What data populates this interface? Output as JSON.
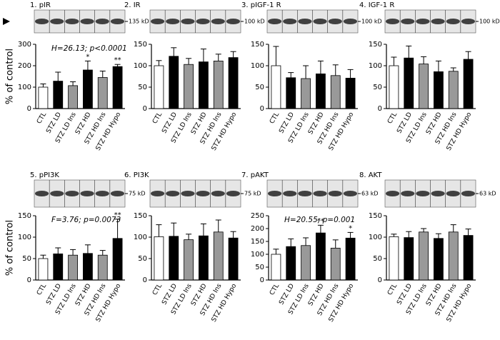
{
  "chart_data": [
    {
      "type": "bar",
      "title": "1. pIR",
      "blot_label": "135 kD",
      "ylabel": "% of control",
      "annotation": "H=26.13; p<0.0001",
      "categories": [
        "CTL",
        "STZ LD",
        "STZ LD Ins",
        "STZ HD",
        "STZ HD Ins",
        "STZ HD Hypo"
      ],
      "values": [
        100,
        128,
        107,
        180,
        145,
        196
      ],
      "errors": [
        15,
        42,
        18,
        42,
        30,
        10
      ],
      "stars": [
        null,
        null,
        null,
        "*",
        null,
        "**"
      ],
      "colors": [
        "#ffffff",
        "#000000",
        "#999999",
        "#000000",
        "#999999",
        "#000000"
      ],
      "ylim": [
        0,
        300
      ],
      "yticks": [
        0,
        100,
        200,
        300
      ]
    },
    {
      "type": "bar",
      "title": "2. IR",
      "blot_label": "100 kD",
      "categories": [
        "CTL",
        "STZ LD",
        "STZ LD Ins",
        "STZ HD",
        "STZ HD Ins",
        "STZ HD Hypo"
      ],
      "values": [
        100,
        122,
        103,
        109,
        111,
        119
      ],
      "errors": [
        12,
        20,
        14,
        30,
        16,
        14
      ],
      "colors": [
        "#ffffff",
        "#000000",
        "#999999",
        "#000000",
        "#999999",
        "#000000"
      ],
      "ylim": [
        0,
        150
      ],
      "yticks": [
        0,
        50,
        100,
        150
      ]
    },
    {
      "type": "bar",
      "title": "3. pIGF-1 R",
      "blot_label": "100 kD",
      "categories": [
        "CTL",
        "STZ LD",
        "STZ LD Ins",
        "STZ HD",
        "STZ HD Ins",
        "STZ HD Hypo"
      ],
      "values": [
        100,
        72,
        70,
        81,
        77,
        71
      ],
      "errors": [
        45,
        12,
        30,
        30,
        25,
        20
      ],
      "colors": [
        "#ffffff",
        "#000000",
        "#999999",
        "#000000",
        "#999999",
        "#000000"
      ],
      "ylim": [
        0,
        150
      ],
      "yticks": [
        0,
        50,
        100,
        150
      ]
    },
    {
      "type": "bar",
      "title": "4. IGF-1 R",
      "blot_label": "100 kD",
      "categories": [
        "CTL",
        "STZ LD",
        "STZ LD Ins",
        "STZ HD",
        "STZ HD Ins",
        "STZ HD Hypo"
      ],
      "values": [
        100,
        118,
        104,
        86,
        87,
        115
      ],
      "errors": [
        20,
        28,
        17,
        25,
        8,
        18
      ],
      "colors": [
        "#ffffff",
        "#000000",
        "#999999",
        "#000000",
        "#999999",
        "#000000"
      ],
      "ylim": [
        0,
        150
      ],
      "yticks": [
        0,
        50,
        100,
        150
      ]
    },
    {
      "type": "bar",
      "title": "5. pPI3K",
      "blot_label": "75 kD",
      "ylabel": "% of control",
      "annotation": "F=3.76; p=0.0073",
      "categories": [
        "CTL",
        "STZ LD",
        "STZ LD Ins",
        "STZ HD",
        "STZ HD Ins",
        "STZ HD Hypo"
      ],
      "values": [
        50,
        61,
        58,
        62,
        58,
        97
      ],
      "errors": [
        8,
        14,
        13,
        20,
        11,
        45
      ],
      "stars": [
        null,
        null,
        null,
        null,
        null,
        "**"
      ],
      "colors": [
        "#ffffff",
        "#000000",
        "#999999",
        "#000000",
        "#999999",
        "#000000"
      ],
      "ylim": [
        0,
        150
      ],
      "yticks": [
        0,
        50,
        100,
        150
      ]
    },
    {
      "type": "bar",
      "title": "6. PI3K",
      "blot_label": "75 kD",
      "categories": [
        "CTL",
        "STZ LD",
        "STZ LD Ins",
        "STZ HD",
        "STZ HD Ins",
        "STZ HD Hypo"
      ],
      "values": [
        101,
        102,
        94,
        103,
        112,
        98
      ],
      "errors": [
        28,
        31,
        13,
        28,
        28,
        15
      ],
      "colors": [
        "#ffffff",
        "#000000",
        "#999999",
        "#000000",
        "#999999",
        "#000000"
      ],
      "ylim": [
        0,
        150
      ],
      "yticks": [
        0,
        50,
        100,
        150
      ]
    },
    {
      "type": "bar",
      "title": "7. pAKT",
      "blot_label": "63 kD",
      "annotation": "H=20.55; p=0.001",
      "categories": [
        "CTL",
        "STZ LD",
        "STZ LD Ins",
        "STZ HD",
        "STZ HD Ins",
        "STZ HD Hypo"
      ],
      "values": [
        100,
        130,
        134,
        183,
        124,
        163
      ],
      "errors": [
        20,
        30,
        30,
        30,
        32,
        22
      ],
      "stars": [
        null,
        null,
        null,
        "**",
        null,
        "*"
      ],
      "colors": [
        "#ffffff",
        "#000000",
        "#999999",
        "#000000",
        "#999999",
        "#000000"
      ],
      "ylim": [
        0,
        250
      ],
      "yticks": [
        0,
        50,
        100,
        150,
        200,
        250
      ]
    },
    {
      "type": "bar",
      "title": "8. AKT",
      "blot_label": "63 kD",
      "categories": [
        "CTL",
        "STZ LD",
        "STZ LD Ins",
        "STZ HD",
        "STZ HD Ins",
        "STZ HD Hypo"
      ],
      "values": [
        101,
        99,
        112,
        97,
        112,
        104
      ],
      "errors": [
        6,
        14,
        8,
        11,
        17,
        15
      ],
      "colors": [
        "#ffffff",
        "#000000",
        "#999999",
        "#000000",
        "#999999",
        "#000000"
      ],
      "ylim": [
        0,
        150
      ],
      "yticks": [
        0,
        50,
        100,
        150
      ]
    }
  ]
}
